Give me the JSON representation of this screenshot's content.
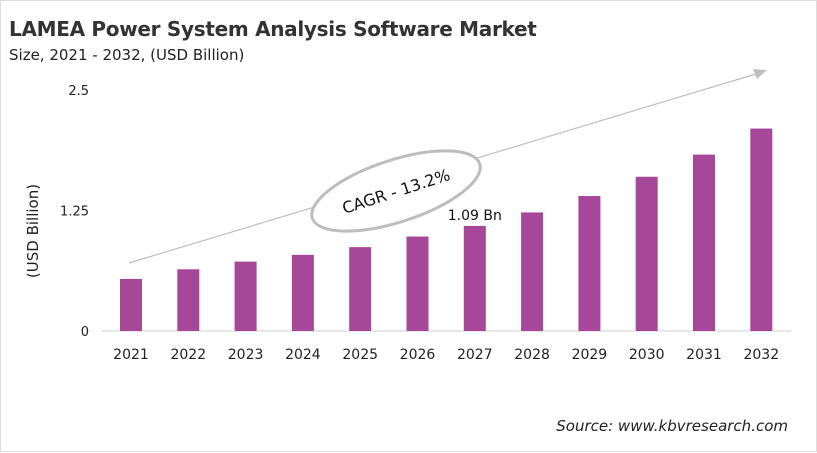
{
  "chart_data": {
    "type": "bar",
    "title": "LAMEA Power System Analysis Software Market",
    "subtitle": "Size, 2021 - 2032, (USD Billion)",
    "xlabel": "",
    "ylabel": "(USD Billion)",
    "categories": [
      "2021",
      "2022",
      "2023",
      "2024",
      "2025",
      "2026",
      "2027",
      "2028",
      "2029",
      "2030",
      "2031",
      "2032"
    ],
    "values": [
      0.54,
      0.64,
      0.72,
      0.79,
      0.87,
      0.98,
      1.09,
      1.23,
      1.4,
      1.6,
      1.83,
      2.1
    ],
    "ylim": [
      0,
      2.5
    ],
    "yticks": [
      "0",
      "1.25",
      "2.5"
    ],
    "grid": false,
    "bar_color": "#a7479a",
    "data_labels": [
      {
        "category": "2027",
        "text": "1.09 Bn"
      }
    ],
    "annotation": "CAGR - 13.2%",
    "source": "Source: www.kbvresearch.com"
  }
}
